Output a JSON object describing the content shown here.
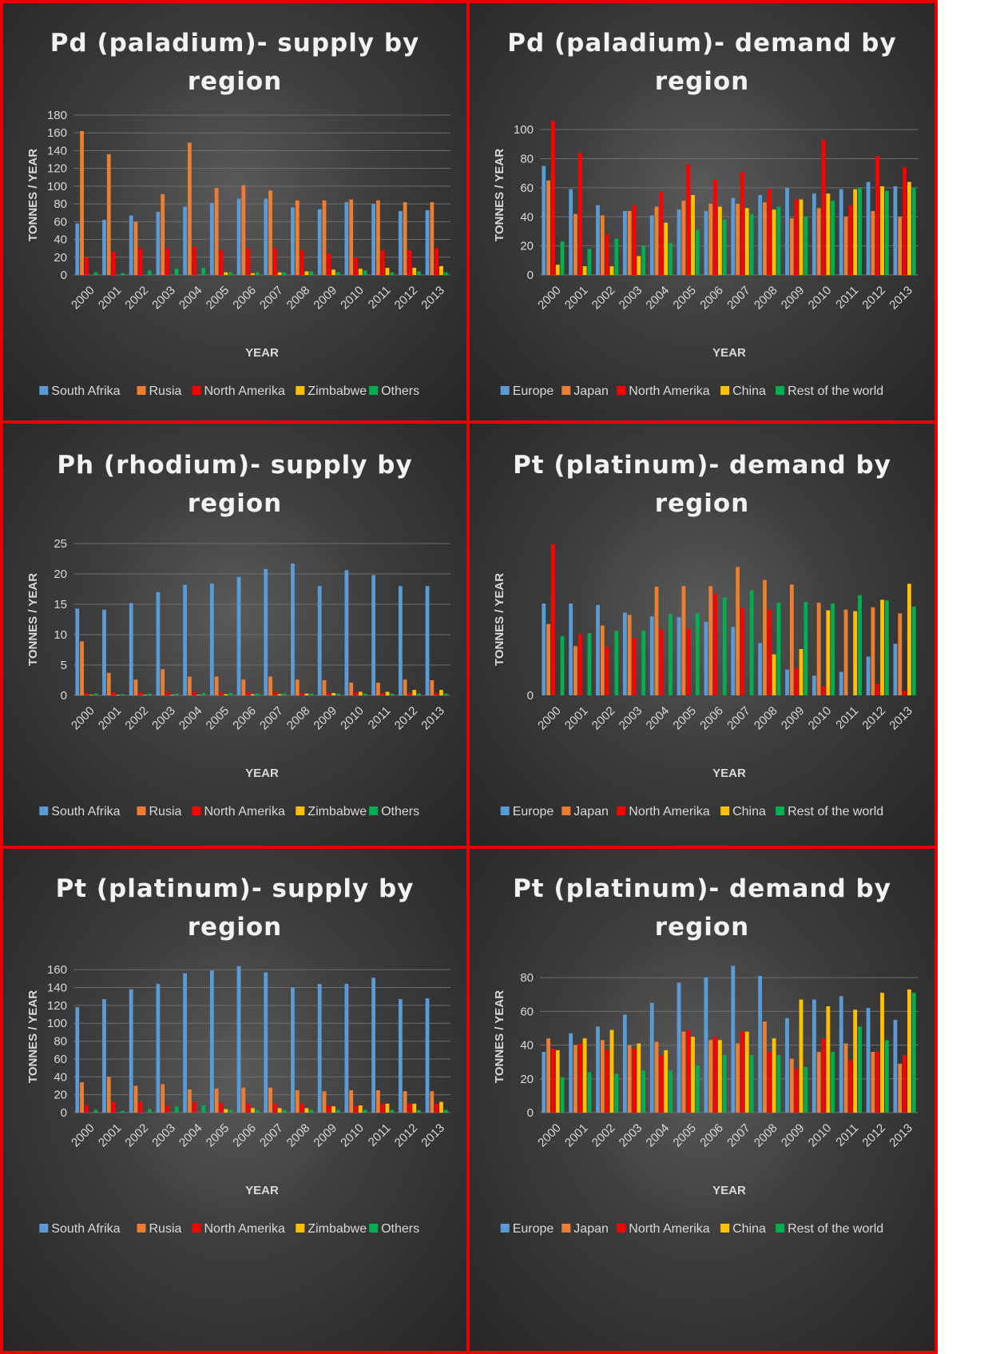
{
  "charts": [
    {
      "title": "Pd (paladium)- supply by region",
      "xlabel": "YEAR",
      "ylabel": "TONNES / YEAR",
      "chart_data": {
        "type": "bar",
        "title": "Pd (paladium)- supply by region",
        "xlabel": "YEAR",
        "ylabel": "TONNES / YEAR",
        "categories": [
          "2000",
          "2001",
          "2002",
          "2003",
          "2004",
          "2005",
          "2006",
          "2007",
          "2008",
          "2009",
          "2010",
          "2011",
          "2012",
          "2013"
        ],
        "ylim": [
          0,
          180
        ],
        "yticks": [
          0,
          20,
          40,
          60,
          80,
          100,
          120,
          140,
          160,
          180
        ],
        "legend_position": "bottom",
        "grid": true,
        "series": [
          {
            "name": "South Afrika",
            "color": "#5b9bd5",
            "values": [
              58,
              62,
              67,
              71,
              77,
              81,
              86,
              86,
              76,
              74,
              82,
              80,
              72,
              73
            ]
          },
          {
            "name": "Rusia",
            "color": "#ed7d31",
            "values": [
              162,
              136,
              60,
              91,
              149,
              98,
              101,
              95,
              84,
              84,
              85,
              84,
              82,
              82
            ]
          },
          {
            "name": "North Amerika",
            "color": "#ff0000",
            "values": [
              20,
              26,
              30,
              30,
              32,
              28,
              30,
              30,
              28,
              24,
              20,
              28,
              28,
              30
            ]
          },
          {
            "name": "Zimbabwe",
            "color": "#ffc000",
            "values": [
              0,
              0,
              0,
              0,
              0,
              3,
              2,
              3,
              4,
              6,
              7,
              8,
              8,
              10
            ]
          },
          {
            "name": "Others",
            "color": "#00b050",
            "values": [
              3,
              2,
              5,
              7,
              8,
              3,
              3,
              3,
              4,
              3,
              5,
              3,
              4,
              3
            ]
          }
        ]
      }
    },
    {
      "title": "Pd (paladium)- demand by region",
      "xlabel": "YEAR",
      "ylabel": "TONNES / YEAR",
      "chart_data": {
        "type": "bar",
        "title": "Pd (paladium)- demand by region",
        "xlabel": "YEAR",
        "ylabel": "TONNES / YEAR",
        "categories": [
          "2000",
          "2001",
          "2002",
          "2003",
          "2004",
          "2005",
          "2006",
          "2007",
          "2008",
          "2009",
          "2010",
          "2011",
          "2012",
          "2013"
        ],
        "ylim": [
          0,
          110
        ],
        "yticks": [
          0,
          20,
          40,
          60,
          80,
          100
        ],
        "legend_position": "bottom",
        "grid": true,
        "series": [
          {
            "name": "Europe",
            "color": "#5b9bd5",
            "values": [
              75,
              59,
              48,
              44,
              41,
              45,
              44,
              53,
              55,
              60,
              56,
              59,
              64,
              61
            ]
          },
          {
            "name": "Japan",
            "color": "#ed7d31",
            "values": [
              65,
              42,
              41,
              44,
              47,
              51,
              49,
              49,
              50,
              39,
              46,
              40,
              44,
              40
            ]
          },
          {
            "name": "North Amerika",
            "color": "#ff0000",
            "values": [
              106,
              84,
              28,
              48,
              57,
              76,
              66,
              71,
              59,
              52,
              93,
              48,
              82,
              74
            ]
          },
          {
            "name": "China",
            "color": "#ffc000",
            "values": [
              7,
              6,
              6,
              13,
              36,
              55,
              47,
              46,
              45,
              52,
              56,
              59,
              61,
              64
            ]
          },
          {
            "name": "Rest of the world",
            "color": "#00b050",
            "values": [
              23,
              18,
              25,
              20,
              22,
              31,
              38,
              42,
              47,
              40,
              51,
              60,
              58,
              60
            ]
          }
        ]
      }
    },
    {
      "title": "Ph (rhodium)- supply by region",
      "xlabel": "YEAR",
      "ylabel": "TONNES / YEAR",
      "chart_data": {
        "type": "bar",
        "title": "Ph (rhodium)- supply by region",
        "xlabel": "YEAR",
        "ylabel": "TONNES / YEAR",
        "categories": [
          "2000",
          "2001",
          "2002",
          "2003",
          "2004",
          "2005",
          "2006",
          "2007",
          "2008",
          "2009",
          "2010",
          "2011",
          "2012",
          "2013"
        ],
        "ylim": [
          0,
          25
        ],
        "yticks": [
          0,
          5,
          10,
          15,
          20,
          25
        ],
        "legend_position": "bottom",
        "grid": true,
        "series": [
          {
            "name": "South Afrika",
            "color": "#5b9bd5",
            "values": [
              14.3,
              14.1,
              15.2,
              17,
              18.2,
              18.4,
              19.5,
              20.8,
              21.7,
              18,
              20.6,
              19.8,
              18,
              18
            ]
          },
          {
            "name": "Rusia",
            "color": "#ed7d31",
            "values": [
              8.9,
              3.7,
              2.6,
              4.3,
              3.1,
              3.1,
              2.6,
              3.1,
              2.6,
              2.5,
              2.1,
              2.1,
              2.6,
              2.5
            ]
          },
          {
            "name": "North Amerika",
            "color": "#ff0000",
            "values": [
              0.4,
              0.5,
              0.5,
              0.6,
              0.5,
              0.5,
              0.5,
              0.5,
              0.4,
              0.4,
              0.5,
              0.4,
              0.4,
              0.4
            ]
          },
          {
            "name": "Zimbabwe",
            "color": "#ffc000",
            "values": [
              0.1,
              0.1,
              0.1,
              0.1,
              0.1,
              0.2,
              0.2,
              0.2,
              0.3,
              0.4,
              0.6,
              0.6,
              0.9,
              0.9
            ]
          },
          {
            "name": "Others",
            "color": "#00b050",
            "values": [
              0.3,
              0.2,
              0.3,
              0.3,
              0.4,
              0.4,
              0.3,
              0.3,
              0.3,
              0.3,
              0.3,
              0.3,
              0.3,
              0.3
            ]
          }
        ]
      }
    },
    {
      "title": "Pt (platinum)- demand by region",
      "xlabel": "YEAR",
      "ylabel": "TONNES / YEAR",
      "chart_data": {
        "type": "bar",
        "title": "Pt (platinum)- demand by region",
        "xlabel": "YEAR",
        "ylabel": "TONNES / YEAR",
        "categories": [
          "2000",
          "2001",
          "2002",
          "2003",
          "2004",
          "2005",
          "2006",
          "2007",
          "2008",
          "2009",
          "2010",
          "2011",
          "2012",
          "2013"
        ],
        "ylim": [
          0,
          20
        ],
        "yticks": [
          0
        ],
        "legend_position": "bottom",
        "grid": false,
        "series": [
          {
            "name": "Europe",
            "color": "#5b9bd5",
            "values": [
              12.1,
              12.1,
              11.9,
              10.9,
              10.4,
              10.3,
              9.7,
              9,
              6.9,
              3.4,
              2.6,
              3.1,
              5.1,
              6.8
            ]
          },
          {
            "name": "Japan",
            "color": "#ed7d31",
            "values": [
              9.4,
              6.5,
              9.2,
              10.6,
              14.3,
              14.4,
              14.4,
              16.9,
              15.2,
              14.6,
              12.2,
              11.3,
              11.6,
              10.8
            ]
          },
          {
            "name": "North Amerika",
            "color": "#ff0000",
            "values": [
              19.9,
              8.1,
              6.4,
              7.6,
              8.7,
              8.8,
              13.4,
              11.5,
              11.3,
              3.6,
              1.2,
              0,
              1.5,
              0.6
            ]
          },
          {
            "name": "China",
            "color": "#ffc000",
            "values": [
              0,
              0,
              0,
              0,
              0,
              0,
              0,
              0,
              5.4,
              6.1,
              11.2,
              11.1,
              12.6,
              14.7
            ]
          },
          {
            "name": "Rest of the world",
            "color": "#00b050",
            "values": [
              7.8,
              8.2,
              8.5,
              8.5,
              10.7,
              10.8,
              12.9,
              13.8,
              12.2,
              12.3,
              12.1,
              13.2,
              12.5,
              11.7
            ]
          }
        ]
      }
    },
    {
      "title": "Pt (platinum)- supply by region",
      "xlabel": "YEAR",
      "ylabel": "TONNES / YEAR",
      "chart_data": {
        "type": "bar",
        "title": "Pt (platinum)- supply by region",
        "xlabel": "YEAR",
        "ylabel": "TONNES / YEAR",
        "categories": [
          "2000",
          "2001",
          "2002",
          "2003",
          "2004",
          "2005",
          "2006",
          "2007",
          "2008",
          "2009",
          "2010",
          "2011",
          "2012",
          "2013"
        ],
        "ylim": [
          0,
          170
        ],
        "yticks": [
          0,
          20,
          40,
          60,
          80,
          100,
          120,
          140,
          160
        ],
        "legend_position": "bottom",
        "grid": true,
        "series": [
          {
            "name": "South Afrika",
            "color": "#5b9bd5",
            "values": [
              118,
              127,
              138,
              144,
              156,
              159,
              164,
              157,
              140,
              144,
              144,
              151,
              127,
              128
            ]
          },
          {
            "name": "Rusia",
            "color": "#ed7d31",
            "values": [
              34,
              40,
              30,
              32,
              26,
              27,
              28,
              28,
              25,
              24,
              25,
              25,
              24,
              24
            ]
          },
          {
            "name": "North Amerika",
            "color": "#ff0000",
            "values": [
              8,
              12,
              12,
              8,
              12,
              11,
              10,
              10,
              10,
              8,
              7,
              10,
              10,
              10
            ]
          },
          {
            "name": "Zimbabwe",
            "color": "#ffc000",
            "values": [
              0,
              0,
              0,
              0,
              0,
              4,
              5,
              5,
              5,
              7,
              8,
              10,
              10,
              12
            ]
          },
          {
            "name": "Others",
            "color": "#00b050",
            "values": [
              3,
              2,
              4,
              7,
              8,
              3,
              3,
              3,
              3,
              3,
              3,
              3,
              3,
              3
            ]
          }
        ]
      }
    },
    {
      "title": "Pt (platinum)- demand by region",
      "xlabel": "YEAR",
      "ylabel": "TONNES / YEAR",
      "chart_data": {
        "type": "bar",
        "title": "Pt (platinum)- demand by region",
        "xlabel": "YEAR",
        "ylabel": "TONNES / YEAR",
        "categories": [
          "2000",
          "2001",
          "2002",
          "2003",
          "2004",
          "2005",
          "2006",
          "2007",
          "2008",
          "2009",
          "2010",
          "2011",
          "2012",
          "2013"
        ],
        "ylim": [
          0,
          90
        ],
        "yticks": [
          0,
          20,
          40,
          60,
          80
        ],
        "legend_position": "bottom",
        "grid": true,
        "series": [
          {
            "name": "Europe",
            "color": "#5b9bd5",
            "values": [
              36,
              47,
              51,
              58,
              65,
              77,
              80,
              87,
              81,
              56,
              67,
              69,
              62,
              55
            ]
          },
          {
            "name": "Japan",
            "color": "#ed7d31",
            "values": [
              44,
              40,
              43,
              40,
              42,
              48,
              43,
              41,
              54,
              32,
              36,
              41,
              36,
              29
            ]
          },
          {
            "name": "North Amerika",
            "color": "#ff0000",
            "values": [
              38,
              41,
              37,
              38,
              34,
              49,
              45,
              48,
              36,
              26,
              44,
              31,
              36,
              34
            ]
          },
          {
            "name": "China",
            "color": "#ffc000",
            "values": [
              37,
              44,
              49,
              41,
              37,
              45,
              43,
              48,
              44,
              67,
              63,
              61,
              71,
              73
            ]
          },
          {
            "name": "Rest of the world",
            "color": "#00b050",
            "values": [
              21,
              24,
              23,
              25,
              25,
              28,
              34,
              34,
              34,
              27,
              36,
              51,
              43,
              71
            ]
          }
        ]
      }
    }
  ]
}
